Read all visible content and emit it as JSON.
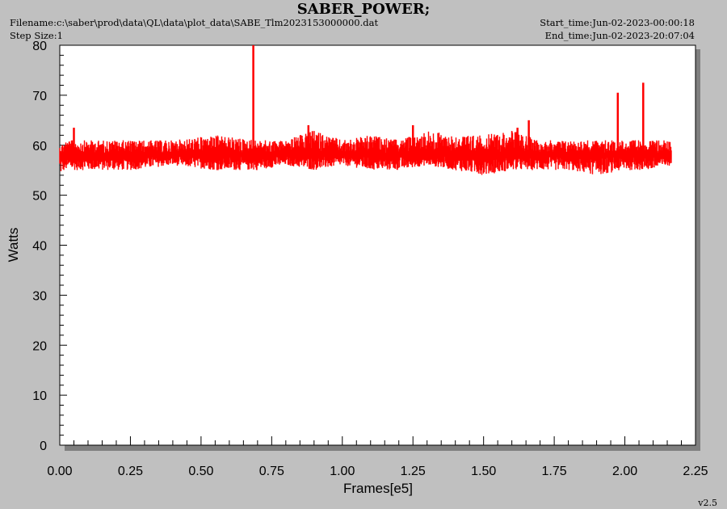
{
  "header": {
    "title": "SABER_POWER;",
    "filename": "Filename:c:\\saber\\prod\\data\\QL\\data\\plot_data\\SABE_Tlm2023153000000.dat",
    "step_size": "Step Size:1",
    "start_time": "Start_time:Jun-02-2023-00:00:18",
    "end_time": "End_time:Jun-02-2023-20:07:04"
  },
  "footer": {
    "version": "v2.5"
  },
  "colors": {
    "series": "#ff0000",
    "background": "#c0c0c0",
    "plot_area": "#ffffff"
  },
  "chart_data": {
    "type": "line",
    "title": "SABER_POWER;",
    "xlabel": "Frames[e5]",
    "ylabel": "Watts",
    "xlim": [
      0,
      2.25
    ],
    "ylim": [
      0,
      80
    ],
    "xticks": [
      "0.00",
      "0.25",
      "0.50",
      "0.75",
      "1.00",
      "1.25",
      "1.50",
      "1.75",
      "2.00",
      "2.25"
    ],
    "yticks": [
      "0",
      "10",
      "20",
      "30",
      "40",
      "50",
      "60",
      "70",
      "80"
    ],
    "grid": false,
    "series": [
      {
        "color": "#ff0000",
        "x_range": [
          0,
          2.165
        ],
        "baseline": 58,
        "band_low": [
          0,
          0.02,
          0.1,
          0.25,
          0.4,
          0.55,
          0.7,
          0.8,
          0.9,
          1.0,
          1.1,
          1.2,
          1.3,
          1.4,
          1.5,
          1.6,
          1.7,
          1.8,
          1.9,
          2.0,
          2.1,
          2.165
        ],
        "band_values_low": [
          54,
          55,
          55,
          55,
          56,
          55,
          55,
          56,
          55,
          56,
          55,
          55,
          56,
          55,
          54,
          55,
          55,
          55,
          54,
          55,
          55,
          56
        ],
        "band_values_high": [
          60,
          61,
          61,
          61,
          61,
          62,
          61,
          61,
          63,
          61,
          62,
          61,
          63,
          62,
          62,
          63,
          61,
          61,
          61,
          61,
          61,
          61
        ],
        "spikes": [
          {
            "x": 0.685,
            "y": 80
          },
          {
            "x": 1.975,
            "y": 70.5
          },
          {
            "x": 2.065,
            "y": 72.5
          },
          {
            "x": 0.05,
            "y": 63.5
          },
          {
            "x": 0.88,
            "y": 64
          },
          {
            "x": 1.25,
            "y": 64
          },
          {
            "x": 1.66,
            "y": 65
          },
          {
            "x": 1.62,
            "y": 63.5
          }
        ]
      }
    ]
  }
}
